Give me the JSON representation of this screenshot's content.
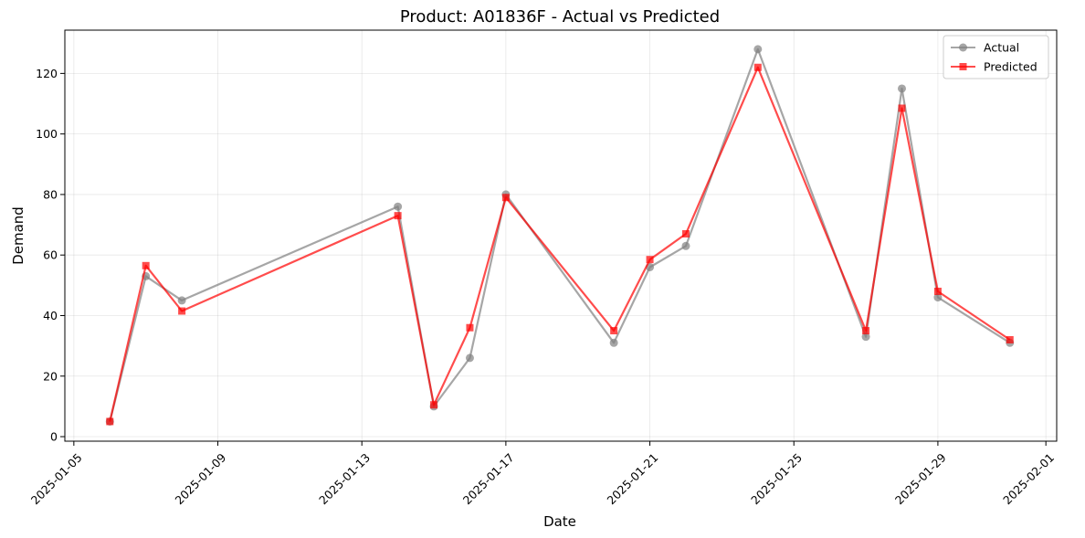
{
  "chart_data": {
    "type": "line",
    "title": "Product: A01836F - Actual vs Predicted",
    "xlabel": "Date",
    "ylabel": "Demand",
    "x_type": "date",
    "xlim": [
      "2025-01-05",
      "2025-02-01"
    ],
    "ylim": [
      0,
      130
    ],
    "x_ticks": [
      "2025-01-05",
      "2025-01-09",
      "2025-01-13",
      "2025-01-17",
      "2025-01-21",
      "2025-01-25",
      "2025-01-29",
      "2025-02-01"
    ],
    "y_ticks": [
      0,
      20,
      40,
      60,
      80,
      100,
      120
    ],
    "grid": true,
    "legend_position": "top-right",
    "x": [
      "2025-01-06",
      "2025-01-07",
      "2025-01-08",
      "2025-01-14",
      "2025-01-15",
      "2025-01-16",
      "2025-01-17",
      "2025-01-20",
      "2025-01-21",
      "2025-01-22",
      "2025-01-24",
      "2025-01-27",
      "2025-01-28",
      "2025-01-29",
      "2025-01-31"
    ],
    "series": [
      {
        "name": "Actual",
        "color": "#808080",
        "marker": "circle",
        "values": [
          5,
          53,
          45,
          76,
          10,
          26,
          80,
          31,
          56,
          63,
          128,
          33,
          115,
          46,
          31
        ]
      },
      {
        "name": "Predicted",
        "color": "#ff0000",
        "marker": "square",
        "values": [
          5,
          56.5,
          41.5,
          73,
          10.5,
          36,
          79,
          35,
          58.5,
          67,
          122,
          35,
          108.5,
          48,
          32
        ]
      }
    ]
  }
}
